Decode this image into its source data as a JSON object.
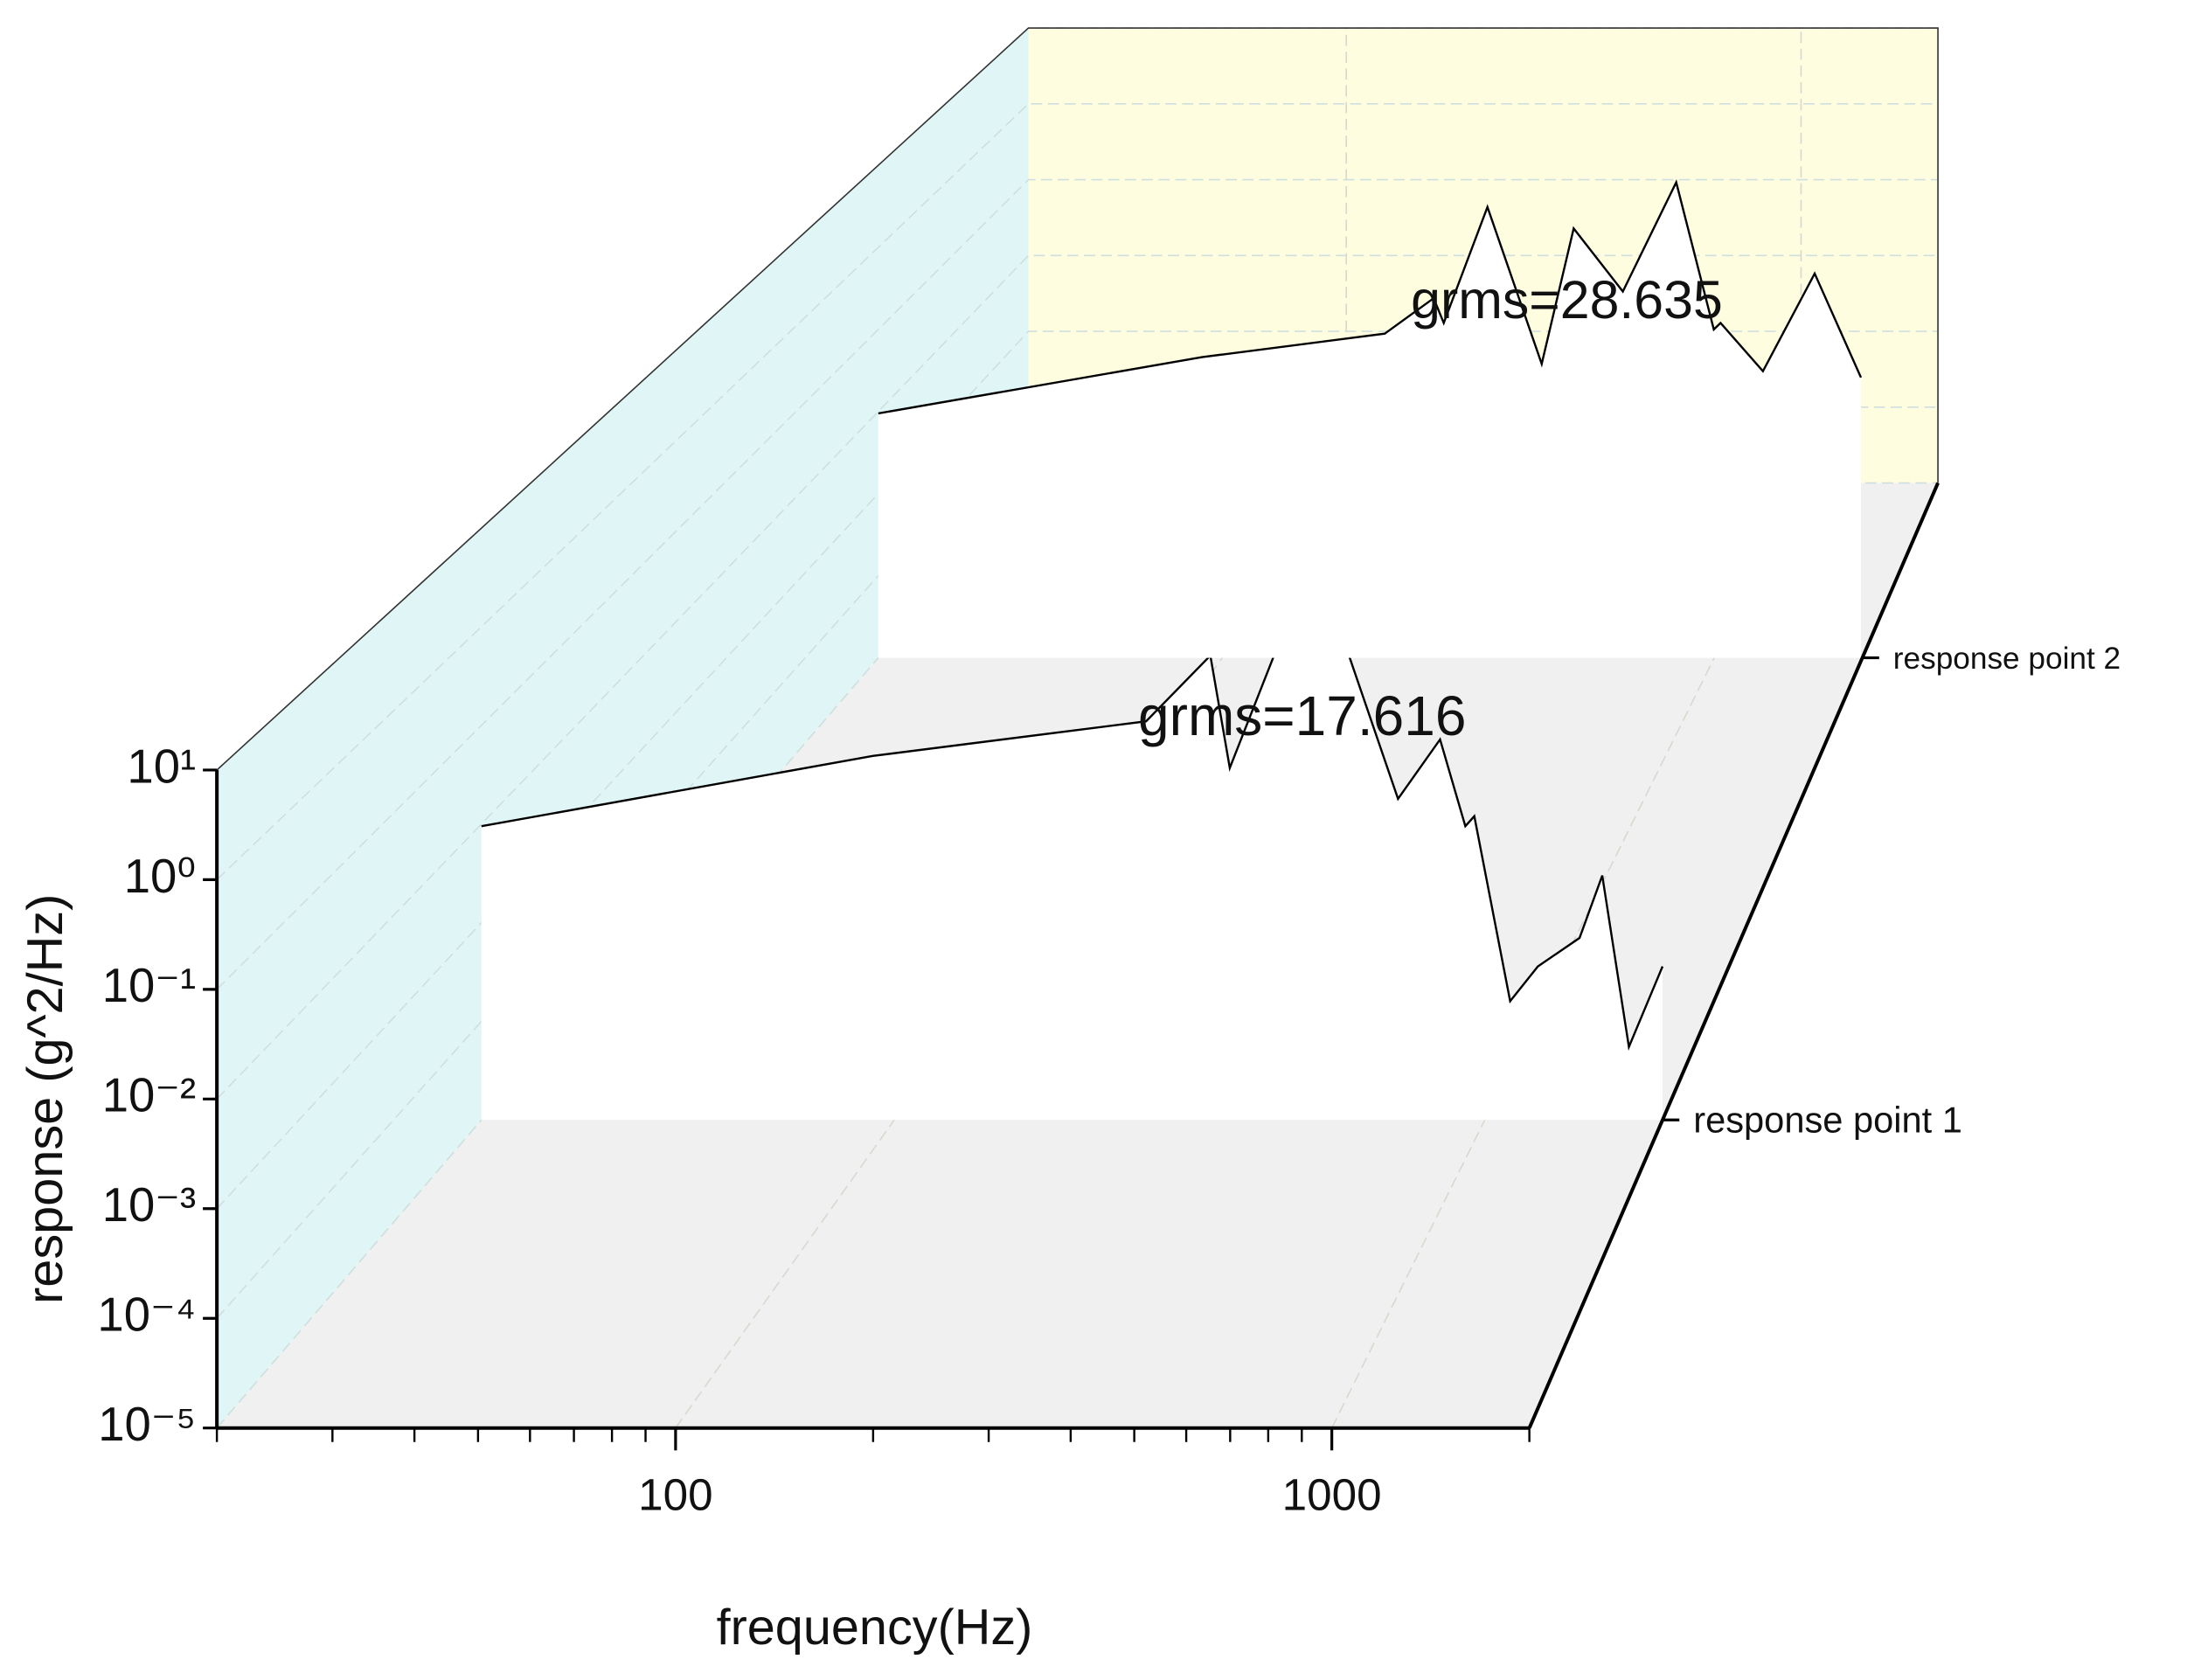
{
  "chart_data": {
    "type": "waterfall",
    "xlabel": "frequency(Hz)",
    "ylabel": "response (g^2/Hz)",
    "xscale": "log",
    "yscale": "log",
    "xlim": [
      20,
      2000
    ],
    "ylim": [
      1e-05,
      10
    ],
    "xticks": [
      100,
      1000
    ],
    "xminorticks": [
      20,
      30,
      40,
      50,
      60,
      70,
      80,
      90,
      200,
      300,
      400,
      500,
      600,
      700,
      800,
      900,
      2000
    ],
    "yticks": [
      {
        "value": 10,
        "label": "10¹"
      },
      {
        "value": 1,
        "label": "10⁰"
      },
      {
        "value": 0.1,
        "label": "10⁻¹"
      },
      {
        "value": 0.01,
        "label": "10⁻²"
      },
      {
        "value": 0.001,
        "label": "10⁻³"
      },
      {
        "value": 0.0001,
        "label": "10⁻⁴"
      },
      {
        "value": 1e-05,
        "label": "10⁻⁵"
      }
    ],
    "grid": true,
    "series": [
      {
        "name": "response point 1",
        "color": "#000000",
        "annotation": "grms=17.616",
        "x": [
          20,
          92,
          267,
          343,
          370,
          514,
          713,
          840,
          927,
          960,
          1104,
          1230,
          1447,
          1581,
          1754,
          2000
        ],
        "values": [
          0.0095,
          0.049,
          0.11,
          0.51,
          0.037,
          5.5,
          0.018,
          0.072,
          0.0095,
          0.012,
          0.00016,
          0.00036,
          0.0007,
          0.003,
          5.5e-05,
          0.00036
        ]
      },
      {
        "name": "response point 2",
        "color": "#000000",
        "annotation": "grms=28.635",
        "x": [
          20,
          91,
          214,
          269,
          282,
          346,
          446,
          518,
          652,
          837,
          998,
          1030,
          1256,
          1600,
          1987
        ],
        "values": [
          0.0095,
          0.046,
          0.089,
          0.24,
          0.12,
          3.1,
          0.038,
          1.7,
          0.29,
          6.2,
          0.1,
          0.12,
          0.031,
          0.48,
          0.026
        ]
      }
    ]
  }
}
